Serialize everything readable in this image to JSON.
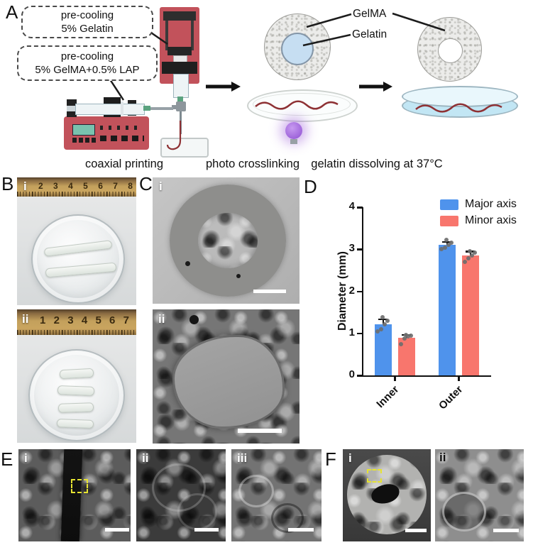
{
  "panelA": {
    "label": "A",
    "box1": [
      "pre-cooling",
      "5% Gelatin"
    ],
    "box2": [
      "pre-cooling",
      "5% GelMA+0.5% LAP"
    ],
    "gelma_label": "GelMA",
    "gelatin_label": "Gelatin",
    "captions": {
      "printing": "coaxial printing",
      "crosslinking": "photo crosslinking",
      "dissolving": "gelatin dissolving at 37°C"
    },
    "colors": {
      "machine_red": "#c2525b",
      "uv_purple": "#9a56d6",
      "filament_red": "#8e3134",
      "gelatin_core_blue": "#c6def2",
      "dish_liquid_blue": "#c2e6f4"
    }
  },
  "panelB": {
    "label": "B",
    "sub_i": "i",
    "sub_ii": "ii",
    "ruler_i": [
      "2",
      "3",
      "4",
      "5",
      "6",
      "7",
      "8"
    ],
    "ruler_ii": [
      "1",
      "2",
      "3",
      "4",
      "5",
      "6",
      "7"
    ]
  },
  "panelC": {
    "label": "C",
    "sub_i": "i",
    "sub_ii": "ii"
  },
  "panelD": {
    "label": "D"
  },
  "panelE": {
    "label": "E",
    "sub_i": "i",
    "sub_ii": "ii",
    "sub_iii": "iii"
  },
  "panelF": {
    "label": "F",
    "sub_i": "i",
    "sub_ii": "ii"
  },
  "chart_data": {
    "type": "bar",
    "categories": [
      "Inner",
      "Outer"
    ],
    "series": [
      {
        "name": "Major axis",
        "color": "#4f93ec",
        "values": [
          1.21,
          3.1
        ],
        "errors": [
          0.13,
          0.08
        ],
        "points": [
          [
            1.05,
            1.1,
            1.21,
            1.3,
            1.38
          ],
          [
            3.0,
            3.04,
            3.1,
            3.16,
            3.22
          ]
        ]
      },
      {
        "name": "Minor axis",
        "color": "#f8766d",
        "values": [
          0.9,
          2.86
        ],
        "errors": [
          0.07,
          0.09
        ],
        "points": [
          [
            0.75,
            0.88,
            0.92,
            0.95,
            0.97
          ],
          [
            2.7,
            2.79,
            2.86,
            2.92,
            2.96
          ]
        ]
      }
    ],
    "title": "",
    "xlabel": "",
    "ylabel": "Diameter (mm)",
    "ylim": [
      0,
      4
    ],
    "yticks": [
      0,
      1,
      2,
      3,
      4
    ],
    "grid": false,
    "legend_position": "top-right",
    "point_color": "#6e6e6e"
  }
}
